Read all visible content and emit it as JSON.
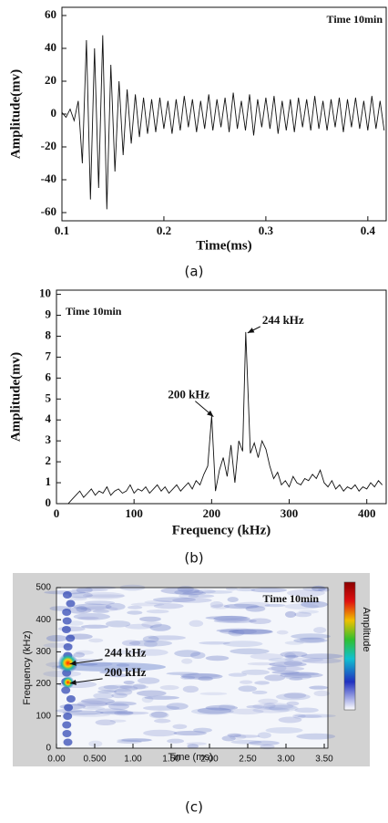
{
  "chart_data": [
    {
      "type": "line",
      "caption": "(a)",
      "note": "Time 10min",
      "xlabel": "Time(ms)",
      "ylabel": "Amplitude(mv)",
      "color": "#111111",
      "xlim": [
        0.1,
        0.418
      ],
      "ylim": [
        -65,
        65
      ],
      "xticks": [
        0.1,
        0.2,
        0.3,
        0.4
      ],
      "yticks": [
        -60,
        -40,
        -20,
        0,
        20,
        40,
        60
      ],
      "x": [
        0.1,
        0.104,
        0.108,
        0.112,
        0.116,
        0.12,
        0.124,
        0.128,
        0.132,
        0.136,
        0.14,
        0.144,
        0.148,
        0.152,
        0.156,
        0.16,
        0.164,
        0.168,
        0.172,
        0.176,
        0.18,
        0.184,
        0.188,
        0.192,
        0.196,
        0.2,
        0.204,
        0.208,
        0.212,
        0.216,
        0.22,
        0.224,
        0.228,
        0.232,
        0.236,
        0.24,
        0.244,
        0.248,
        0.252,
        0.256,
        0.26,
        0.264,
        0.268,
        0.272,
        0.276,
        0.28,
        0.284,
        0.288,
        0.292,
        0.296,
        0.3,
        0.304,
        0.308,
        0.312,
        0.316,
        0.32,
        0.324,
        0.328,
        0.332,
        0.336,
        0.34,
        0.344,
        0.348,
        0.352,
        0.356,
        0.36,
        0.364,
        0.368,
        0.372,
        0.376,
        0.38,
        0.384,
        0.388,
        0.392,
        0.396,
        0.4,
        0.404,
        0.408,
        0.412,
        0.416
      ],
      "values": [
        1,
        -2,
        3,
        -4,
        8,
        -30,
        45,
        -52,
        40,
        -45,
        48,
        -58,
        30,
        -35,
        20,
        -25,
        15,
        -18,
        12,
        -14,
        10,
        -12,
        9,
        -11,
        10,
        -9,
        8,
        -12,
        9,
        -10,
        11,
        -8,
        9,
        -11,
        8,
        -9,
        12,
        -10,
        9,
        -8,
        10,
        -11,
        13,
        -9,
        8,
        -10,
        12,
        -13,
        9,
        -8,
        10,
        -9,
        11,
        -12,
        8,
        -10,
        9,
        -11,
        10,
        -8,
        9,
        -10,
        11,
        -9,
        8,
        -10,
        9,
        -8,
        10,
        -11,
        9,
        -8,
        10,
        -9,
        8,
        -10,
        11,
        -9,
        8,
        -10
      ]
    },
    {
      "type": "line",
      "caption": "(b)",
      "note": "Time 10min",
      "xlabel": "Frequency (kHz)",
      "ylabel": "Amplitude(mv)",
      "color": "#111111",
      "xlim": [
        0,
        425
      ],
      "ylim": [
        0,
        10.2
      ],
      "xticks": [
        0,
        100,
        200,
        300,
        400
      ],
      "yticks": [
        0,
        1,
        2,
        3,
        4,
        5,
        6,
        7,
        8,
        9,
        10
      ],
      "x": [
        0,
        5,
        10,
        15,
        20,
        25,
        30,
        35,
        40,
        45,
        50,
        55,
        60,
        65,
        70,
        75,
        80,
        85,
        90,
        95,
        100,
        105,
        110,
        115,
        120,
        125,
        130,
        135,
        140,
        145,
        150,
        155,
        160,
        165,
        170,
        175,
        180,
        185,
        190,
        195,
        200,
        205,
        210,
        215,
        220,
        225,
        230,
        235,
        240,
        244,
        250,
        255,
        260,
        265,
        270,
        275,
        280,
        285,
        290,
        295,
        300,
        305,
        310,
        315,
        320,
        325,
        330,
        335,
        340,
        345,
        350,
        355,
        360,
        365,
        370,
        375,
        380,
        385,
        390,
        395,
        400,
        405,
        410,
        415,
        420
      ],
      "values": [
        0,
        0,
        0,
        0,
        0.2,
        0.4,
        0.6,
        0.3,
        0.5,
        0.7,
        0.4,
        0.6,
        0.5,
        0.8,
        0.4,
        0.6,
        0.7,
        0.5,
        0.6,
        0.9,
        0.5,
        0.7,
        0.6,
        0.8,
        0.5,
        0.7,
        0.9,
        0.6,
        0.8,
        0.5,
        0.7,
        0.9,
        0.6,
        0.8,
        1.0,
        0.7,
        1.1,
        0.9,
        1.4,
        1.8,
        4.2,
        0.6,
        1.6,
        2.2,
        1.3,
        2.8,
        1.0,
        3.0,
        2.5,
        8.2,
        2.4,
        2.9,
        2.2,
        3.0,
        2.6,
        1.8,
        1.2,
        1.5,
        0.9,
        1.1,
        0.8,
        1.3,
        1.0,
        0.9,
        1.2,
        1.1,
        1.4,
        1.2,
        1.6,
        1.0,
        0.8,
        1.1,
        0.7,
        0.9,
        0.6,
        0.8,
        0.7,
        0.9,
        0.6,
        0.8,
        0.7,
        1.0,
        0.8,
        1.1,
        0.9
      ],
      "annotations": [
        {
          "text": "200 kHz",
          "x": 200,
          "y": 4.2
        },
        {
          "text": "244 kHz",
          "x": 244,
          "y": 8.2
        }
      ]
    },
    {
      "type": "heatmap",
      "caption": "(c)",
      "note": "Time 10min",
      "xlabel": "Time (ms)",
      "ylabel": "Frequency (kHz)",
      "colorbar_label": "Amplitude",
      "xlim": [
        0,
        3.5
      ],
      "ylim": [
        0,
        500
      ],
      "xticks": [
        {
          "value": 0,
          "label": "0.00"
        },
        {
          "value": 0.5,
          "label": "0.500"
        },
        {
          "value": 1,
          "label": "1.00"
        },
        {
          "value": 1.5,
          "label": "1.50"
        },
        {
          "value": 2,
          "label": "2.00"
        },
        {
          "value": 2.5,
          "label": "2.50"
        },
        {
          "value": 3,
          "label": "3.00"
        },
        {
          "value": 3.5,
          "label": "3.50"
        }
      ],
      "yticks": [
        0,
        100,
        200,
        300,
        400,
        500
      ],
      "annotations": [
        {
          "text": "244 kHz",
          "x": 0.15,
          "y": 265
        },
        {
          "text": "200 kHz",
          "x": 0.15,
          "y": 205
        }
      ]
    }
  ]
}
